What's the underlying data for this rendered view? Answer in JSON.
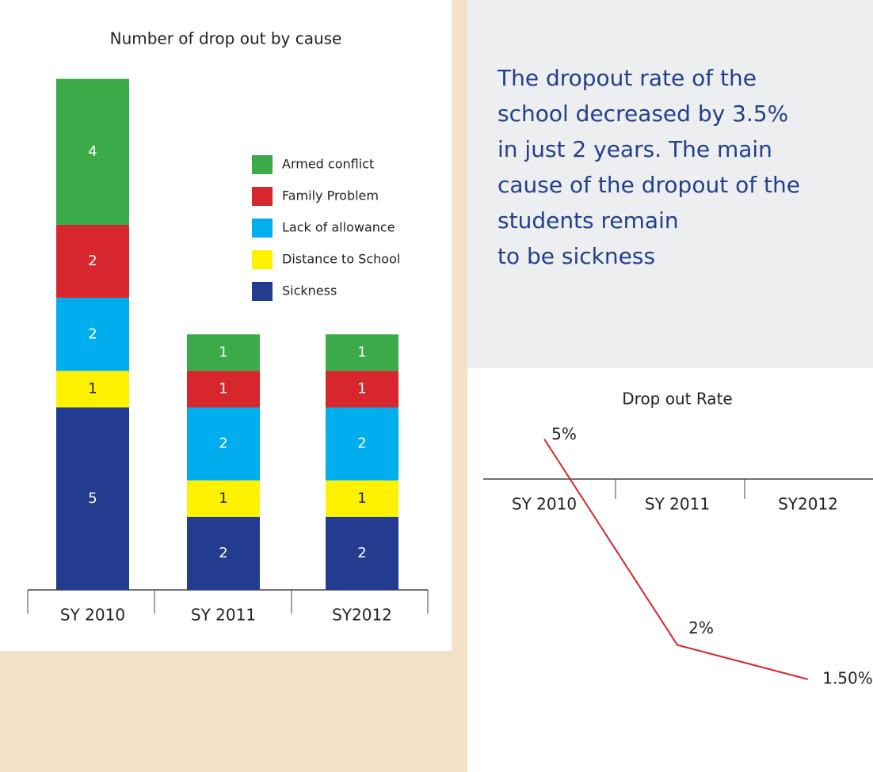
{
  "chart_data": [
    {
      "type": "stacked-bar",
      "title": "Number of drop out by cause",
      "categories": [
        "SY 2010",
        "SY 2011",
        "SY2012"
      ],
      "series": [
        {
          "name": "Sickness",
          "color": "#233c8f",
          "values": [
            5,
            2,
            2
          ]
        },
        {
          "name": "Distance to School",
          "color": "#fff200",
          "values": [
            1,
            1,
            1
          ]
        },
        {
          "name": "Lack of allowance",
          "color": "#00adef",
          "values": [
            2,
            2,
            2
          ]
        },
        {
          "name": "Family Problem",
          "color": "#d7262d",
          "values": [
            2,
            1,
            1
          ]
        },
        {
          "name": "Armed conflict",
          "color": "#3bab4a",
          "values": [
            4,
            1,
            1
          ]
        }
      ]
    },
    {
      "type": "line",
      "title": "Drop out Rate",
      "categories": [
        "SY 2010",
        "SY 2011",
        "SY2012"
      ],
      "values": [
        5,
        2,
        1.5
      ],
      "value_labels": [
        "5%",
        "2%",
        "1.50%"
      ],
      "color": "#d7262d"
    }
  ],
  "note": [
    "The dropout rate of the",
    "school decreased by 3.5%",
    "in just 2 years. The main",
    "cause of the dropout of the",
    "students remain",
    "to be sickness"
  ]
}
